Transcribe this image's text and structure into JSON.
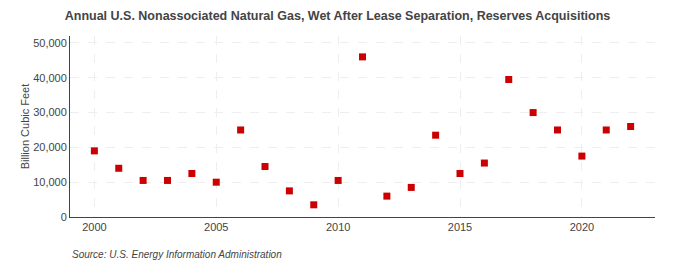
{
  "chart_data": {
    "type": "scatter",
    "title": "Annual U.S. Nonassociated Natural Gas, Wet After Lease Separation, Reserves Acquisitions",
    "y_label": "Billion Cubic Feet",
    "annotations": [
      "Source: U.S. Energy Information Administration"
    ],
    "x": [
      2000,
      2001,
      2002,
      2003,
      2004,
      2005,
      2006,
      2007,
      2008,
      2009,
      2010,
      2011,
      2012,
      2013,
      2014,
      2015,
      2016,
      2017,
      2018,
      2019,
      2020,
      2021,
      2022
    ],
    "values": [
      19000,
      14000,
      10500,
      10500,
      12500,
      10000,
      25000,
      14500,
      7500,
      3500,
      10500,
      46000,
      6000,
      8500,
      23500,
      12500,
      15500,
      39500,
      30000,
      25000,
      17500,
      25000,
      26000
    ],
    "color": "#cc0000",
    "marker": "square",
    "xlim": [
      1999,
      2023
    ],
    "xticks": [
      2000,
      2005,
      2010,
      2015,
      2020
    ],
    "ylim": [
      0,
      52000
    ],
    "yticks": [
      0,
      {
        "value": 10000,
        "label": "10,000"
      },
      {
        "value": 20000,
        "label": "20,000"
      },
      {
        "value": 30000,
        "label": "30,000"
      },
      {
        "value": 40000,
        "label": "40,000"
      },
      {
        "value": 50000,
        "label": "50,000"
      }
    ],
    "grid": true
  }
}
